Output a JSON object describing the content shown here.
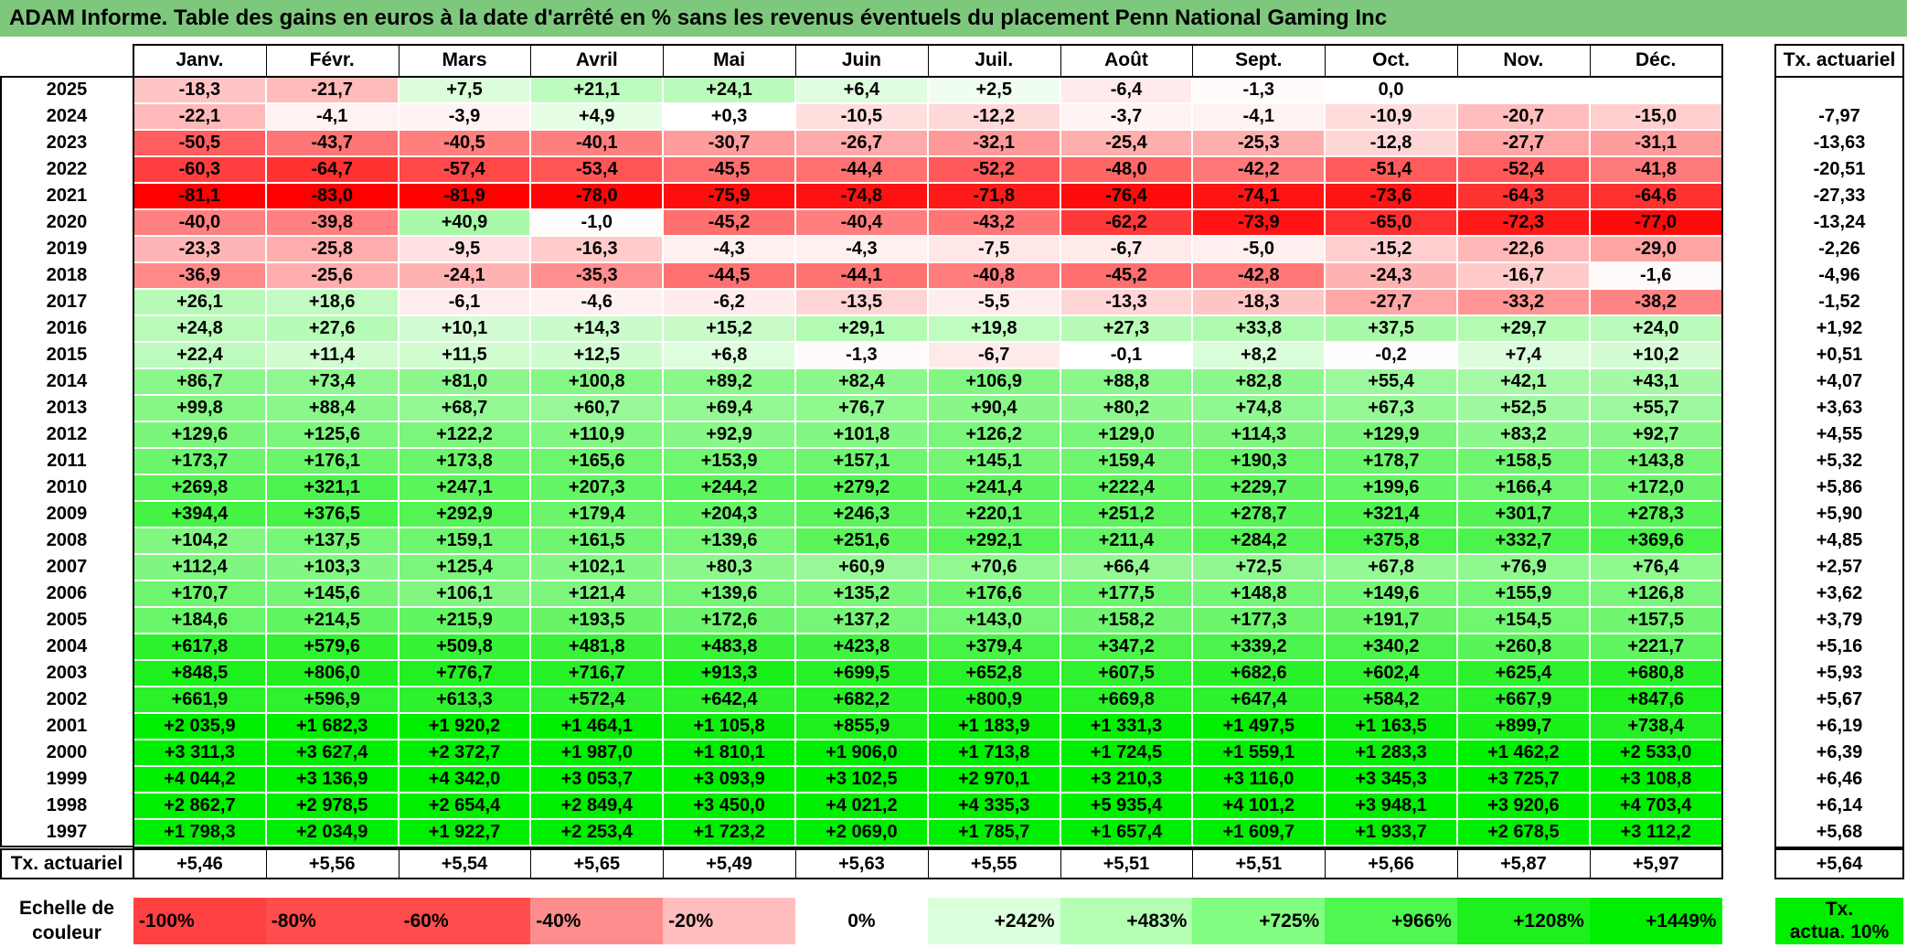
{
  "title": "ADAM Informe. Table des gains en euros à la date d'arrêté en % sans les revenus éventuels du placement Penn National Gaming Inc",
  "months": [
    "Janv.",
    "Févr.",
    "Mars",
    "Avril",
    "Mai",
    "Juin",
    "Juil.",
    "Août",
    "Sept.",
    "Oct.",
    "Nov.",
    "Déc."
  ],
  "actuarial_header": "Tx. actuariel",
  "rows": [
    {
      "year": "2025",
      "values": [
        "-18,3",
        "-21,7",
        "+7,5",
        "+21,1",
        "+24,1",
        "+6,4",
        "+2,5",
        "-6,4",
        "-1,3",
        "0,0",
        "",
        ""
      ],
      "rate": ""
    },
    {
      "year": "2024",
      "values": [
        "-22,1",
        "-4,1",
        "-3,9",
        "+4,9",
        "+0,3",
        "-10,5",
        "-12,2",
        "-3,7",
        "-4,1",
        "-10,9",
        "-20,7",
        "-15,0"
      ],
      "rate": "-7,97"
    },
    {
      "year": "2023",
      "values": [
        "-50,5",
        "-43,7",
        "-40,5",
        "-40,1",
        "-30,7",
        "-26,7",
        "-32,1",
        "-25,4",
        "-25,3",
        "-12,8",
        "-27,7",
        "-31,1"
      ],
      "rate": "-13,63"
    },
    {
      "year": "2022",
      "values": [
        "-60,3",
        "-64,7",
        "-57,4",
        "-53,4",
        "-45,5",
        "-44,4",
        "-52,2",
        "-48,0",
        "-42,2",
        "-51,4",
        "-52,4",
        "-41,8"
      ],
      "rate": "-20,51"
    },
    {
      "year": "2021",
      "values": [
        "-81,1",
        "-83,0",
        "-81,9",
        "-78,0",
        "-75,9",
        "-74,8",
        "-71,8",
        "-76,4",
        "-74,1",
        "-73,6",
        "-64,3",
        "-64,6"
      ],
      "rate": "-27,33"
    },
    {
      "year": "2020",
      "values": [
        "-40,0",
        "-39,8",
        "+40,9",
        "-1,0",
        "-45,2",
        "-40,4",
        "-43,2",
        "-62,2",
        "-73,9",
        "-65,0",
        "-72,3",
        "-77,0"
      ],
      "rate": "-13,24"
    },
    {
      "year": "2019",
      "values": [
        "-23,3",
        "-25,8",
        "-9,5",
        "-16,3",
        "-4,3",
        "-4,3",
        "-7,5",
        "-6,7",
        "-5,0",
        "-15,2",
        "-22,6",
        "-29,0"
      ],
      "rate": "-2,26"
    },
    {
      "year": "2018",
      "values": [
        "-36,9",
        "-25,6",
        "-24,1",
        "-35,3",
        "-44,5",
        "-44,1",
        "-40,8",
        "-45,2",
        "-42,8",
        "-24,3",
        "-16,7",
        "-1,6"
      ],
      "rate": "-4,96"
    },
    {
      "year": "2017",
      "values": [
        "+26,1",
        "+18,6",
        "-6,1",
        "-4,6",
        "-6,2",
        "-13,5",
        "-5,5",
        "-13,3",
        "-18,3",
        "-27,7",
        "-33,2",
        "-38,2"
      ],
      "rate": "-1,52"
    },
    {
      "year": "2016",
      "values": [
        "+24,8",
        "+27,6",
        "+10,1",
        "+14,3",
        "+15,2",
        "+29,1",
        "+19,8",
        "+27,3",
        "+33,8",
        "+37,5",
        "+29,7",
        "+24,0"
      ],
      "rate": "+1,92"
    },
    {
      "year": "2015",
      "values": [
        "+22,4",
        "+11,4",
        "+11,5",
        "+12,5",
        "+6,8",
        "-1,3",
        "-6,7",
        "-0,1",
        "+8,2",
        "-0,2",
        "+7,4",
        "+10,2"
      ],
      "rate": "+0,51"
    },
    {
      "year": "2014",
      "values": [
        "+86,7",
        "+73,4",
        "+81,0",
        "+100,8",
        "+89,2",
        "+82,4",
        "+106,9",
        "+88,8",
        "+82,8",
        "+55,4",
        "+42,1",
        "+43,1"
      ],
      "rate": "+4,07"
    },
    {
      "year": "2013",
      "values": [
        "+99,8",
        "+88,4",
        "+68,7",
        "+60,7",
        "+69,4",
        "+76,7",
        "+90,4",
        "+80,2",
        "+74,8",
        "+67,3",
        "+52,5",
        "+55,7"
      ],
      "rate": "+3,63"
    },
    {
      "year": "2012",
      "values": [
        "+129,6",
        "+125,6",
        "+122,2",
        "+110,9",
        "+92,9",
        "+101,8",
        "+126,2",
        "+129,0",
        "+114,3",
        "+129,9",
        "+83,2",
        "+92,7"
      ],
      "rate": "+4,55"
    },
    {
      "year": "2011",
      "values": [
        "+173,7",
        "+176,1",
        "+173,8",
        "+165,6",
        "+153,9",
        "+157,1",
        "+145,1",
        "+159,4",
        "+190,3",
        "+178,7",
        "+158,5",
        "+143,8"
      ],
      "rate": "+5,32"
    },
    {
      "year": "2010",
      "values": [
        "+269,8",
        "+321,1",
        "+247,1",
        "+207,3",
        "+244,2",
        "+279,2",
        "+241,4",
        "+222,4",
        "+229,7",
        "+199,6",
        "+166,4",
        "+172,0"
      ],
      "rate": "+5,86"
    },
    {
      "year": "2009",
      "values": [
        "+394,4",
        "+376,5",
        "+292,9",
        "+179,4",
        "+204,3",
        "+246,3",
        "+220,1",
        "+251,2",
        "+278,7",
        "+321,4",
        "+301,7",
        "+278,3"
      ],
      "rate": "+5,90"
    },
    {
      "year": "2008",
      "values": [
        "+104,2",
        "+137,5",
        "+159,1",
        "+161,5",
        "+139,6",
        "+251,6",
        "+292,1",
        "+211,4",
        "+284,2",
        "+375,8",
        "+332,7",
        "+369,6"
      ],
      "rate": "+4,85"
    },
    {
      "year": "2007",
      "values": [
        "+112,4",
        "+103,3",
        "+125,4",
        "+102,1",
        "+80,3",
        "+60,9",
        "+70,6",
        "+66,4",
        "+72,5",
        "+67,8",
        "+76,9",
        "+76,4"
      ],
      "rate": "+2,57"
    },
    {
      "year": "2006",
      "values": [
        "+170,7",
        "+145,6",
        "+106,1",
        "+121,4",
        "+139,6",
        "+135,2",
        "+176,6",
        "+177,5",
        "+148,8",
        "+149,6",
        "+155,9",
        "+126,8"
      ],
      "rate": "+3,62"
    },
    {
      "year": "2005",
      "values": [
        "+184,6",
        "+214,5",
        "+215,9",
        "+193,5",
        "+172,6",
        "+137,2",
        "+143,0",
        "+158,2",
        "+177,3",
        "+191,7",
        "+154,5",
        "+157,5"
      ],
      "rate": "+3,79"
    },
    {
      "year": "2004",
      "values": [
        "+617,8",
        "+579,6",
        "+509,8",
        "+481,8",
        "+483,8",
        "+423,8",
        "+379,4",
        "+347,2",
        "+339,2",
        "+340,2",
        "+260,8",
        "+221,7"
      ],
      "rate": "+5,16"
    },
    {
      "year": "2003",
      "values": [
        "+848,5",
        "+806,0",
        "+776,7",
        "+716,7",
        "+913,3",
        "+699,5",
        "+652,8",
        "+607,5",
        "+682,6",
        "+602,4",
        "+625,4",
        "+680,8"
      ],
      "rate": "+5,93"
    },
    {
      "year": "2002",
      "values": [
        "+661,9",
        "+596,9",
        "+613,3",
        "+572,4",
        "+642,4",
        "+682,2",
        "+800,9",
        "+669,8",
        "+647,4",
        "+584,2",
        "+667,9",
        "+847,6"
      ],
      "rate": "+5,67"
    },
    {
      "year": "2001",
      "values": [
        "+2 035,9",
        "+1 682,3",
        "+1 920,2",
        "+1 464,1",
        "+1 105,8",
        "+855,9",
        "+1 183,9",
        "+1 331,3",
        "+1 497,5",
        "+1 163,5",
        "+899,7",
        "+738,4"
      ],
      "rate": "+6,19"
    },
    {
      "year": "2000",
      "values": [
        "+3 311,3",
        "+3 627,4",
        "+2 372,7",
        "+1 987,0",
        "+1 810,1",
        "+1 906,0",
        "+1 713,8",
        "+1 724,5",
        "+1 559,1",
        "+1 283,3",
        "+1 462,2",
        "+2 533,0"
      ],
      "rate": "+6,39"
    },
    {
      "year": "1999",
      "values": [
        "+4 044,2",
        "+3 136,9",
        "+4 342,0",
        "+3 053,7",
        "+3 093,9",
        "+3 102,5",
        "+2 970,1",
        "+3 210,3",
        "+3 116,0",
        "+3 345,3",
        "+3 725,7",
        "+3 108,8"
      ],
      "rate": "+6,46"
    },
    {
      "year": "1998",
      "values": [
        "+2 862,7",
        "+2 978,5",
        "+2 654,4",
        "+2 849,4",
        "+3 450,0",
        "+4 021,2",
        "+4 335,3",
        "+5 935,4",
        "+4 101,2",
        "+3 948,1",
        "+3 920,6",
        "+4 703,4"
      ],
      "rate": "+6,14"
    },
    {
      "year": "1997",
      "values": [
        "+1 798,3",
        "+2 034,9",
        "+1 922,7",
        "+2 253,4",
        "+1 723,2",
        "+2 069,0",
        "+1 785,7",
        "+1 657,4",
        "+1 609,7",
        "+1 933,7",
        "+2 678,5",
        "+3 112,2"
      ],
      "rate": "+5,68"
    }
  ],
  "actuarial_row": {
    "label": "Tx. actuariel",
    "values": [
      "+5,46",
      "+5,56",
      "+5,54",
      "+5,65",
      "+5,49",
      "+5,63",
      "+5,55",
      "+5,51",
      "+5,51",
      "+5,66",
      "+5,87",
      "+5,97"
    ],
    "overall": "+5,64"
  },
  "scale": {
    "label_line1": "Echelle de",
    "label_line2": "couleur",
    "steps": [
      {
        "text": "-100%",
        "color": "#ff4040",
        "align": "left"
      },
      {
        "text": "-80%",
        "color": "#ff4d4d",
        "align": "left"
      },
      {
        "text": "-60%",
        "color": "#ff4c4c",
        "align": "left"
      },
      {
        "text": "-40%",
        "color": "#ff8c8c",
        "align": "left"
      },
      {
        "text": "-20%",
        "color": "#ffbdbd",
        "align": "left"
      },
      {
        "text": "0%",
        "color": "#ffffff",
        "align": "center"
      },
      {
        "text": "+242%",
        "color": "#dcffdc",
        "align": "right"
      },
      {
        "text": "+483%",
        "color": "#b4ffb4",
        "align": "right"
      },
      {
        "text": "+725%",
        "color": "#82ff82",
        "align": "right"
      },
      {
        "text": "+966%",
        "color": "#50f750",
        "align": "right"
      },
      {
        "text": "+1208%",
        "color": "#1ef01e",
        "align": "right"
      },
      {
        "text": "+1449%",
        "color": "#00ee00",
        "align": "right"
      }
    ],
    "legend_line1": "Tx.",
    "legend_line2": "actua. 10%",
    "legend_color": "#00ee00"
  },
  "colors": {
    "title_bg": "#7ec87e",
    "negative_max": "#ff0000",
    "positive_max": "#00ee00"
  }
}
